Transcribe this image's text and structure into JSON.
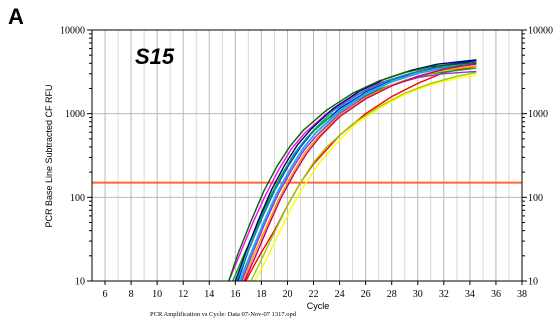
{
  "panel_label": "A",
  "chart_data": {
    "type": "line",
    "title": "S15",
    "xlabel": "Cycle",
    "ylabel": "PCR Base Line Subtracted CF RFU",
    "caption": "PCR Amplification vs Cycle: Data 07-Nov-07 1317.opd",
    "xlim": [
      5,
      38
    ],
    "ylim": [
      10,
      10000
    ],
    "y_scale": "log",
    "x_ticks": [
      6,
      8,
      10,
      12,
      14,
      16,
      18,
      20,
      22,
      24,
      26,
      28,
      30,
      32,
      34,
      36,
      38
    ],
    "y_ticks": [
      10,
      100,
      1000,
      10000
    ],
    "y_tick_labels": [
      "10",
      "100",
      "1000",
      "10000"
    ],
    "grid": true,
    "threshold": {
      "value": 150,
      "color": "#ff6633"
    },
    "series": [
      {
        "color": "#ff0000",
        "x": [
          16.8,
          17.5,
          18,
          19,
          20,
          21,
          22,
          24,
          26,
          28,
          30,
          32,
          34.5
        ],
        "y": [
          10,
          16,
          22,
          40,
          80,
          150,
          250,
          550,
          1000,
          1600,
          2300,
          3100,
          3700
        ]
      },
      {
        "color": "#0000ff",
        "x": [
          16.2,
          17,
          18,
          19,
          20,
          21,
          22,
          24,
          26,
          28,
          30,
          32,
          34.5
        ],
        "y": [
          10,
          23,
          55,
          120,
          230,
          400,
          620,
          1150,
          1800,
          2500,
          3200,
          3800,
          4300
        ]
      },
      {
        "color": "#00aa00",
        "x": [
          15.8,
          16.5,
          17.5,
          18.5,
          19.5,
          20.5,
          21.5,
          23,
          25,
          27,
          29,
          31,
          34.5
        ],
        "y": [
          10,
          18,
          40,
          90,
          180,
          330,
          520,
          850,
          1350,
          1950,
          2500,
          3000,
          3500
        ]
      },
      {
        "color": "#ff00ff",
        "x": [
          15.5,
          16.3,
          17.3,
          18.3,
          19.3,
          20.3,
          21.3,
          23,
          25,
          27,
          29,
          31,
          34.5
        ],
        "y": [
          10,
          20,
          48,
          105,
          210,
          380,
          580,
          1000,
          1600,
          2300,
          2900,
          3400,
          3900
        ]
      },
      {
        "color": "#00cccc",
        "x": [
          16.3,
          17.2,
          18.2,
          19.2,
          20.2,
          21.2,
          22.2,
          24,
          26,
          28,
          30,
          32,
          34.5
        ],
        "y": [
          10,
          22,
          52,
          115,
          220,
          390,
          600,
          1100,
          1750,
          2450,
          3050,
          3550,
          4000
        ]
      },
      {
        "color": "#000066",
        "x": [
          16,
          16.8,
          17.8,
          18.8,
          19.8,
          20.8,
          21.8,
          23.5,
          25.5,
          27.5,
          29.5,
          31.5,
          34.5
        ],
        "y": [
          10,
          22,
          55,
          125,
          245,
          430,
          650,
          1150,
          1850,
          2600,
          3300,
          3900,
          4400
        ]
      },
      {
        "color": "#99cc00",
        "x": [
          17.2,
          18,
          19,
          20,
          21,
          22,
          23,
          25,
          27,
          29,
          31,
          33,
          34.5
        ],
        "y": [
          10,
          18,
          38,
          80,
          150,
          260,
          400,
          750,
          1200,
          1750,
          2300,
          2800,
          3100
        ]
      },
      {
        "color": "#9933cc",
        "x": [
          16.5,
          17.3,
          18.3,
          19.3,
          20.3,
          21.3,
          22.3,
          24,
          26,
          28,
          30,
          32,
          34.5
        ],
        "y": [
          10,
          21,
          50,
          110,
          210,
          370,
          560,
          1000,
          1600,
          2200,
          2700,
          3000,
          3200
        ]
      },
      {
        "color": "#ffff00",
        "x": [
          17.5,
          18.3,
          19.3,
          20.3,
          21.3,
          22.3,
          23.3,
          25,
          27,
          29,
          31,
          33,
          34.5
        ],
        "y": [
          10,
          17,
          36,
          75,
          140,
          240,
          370,
          700,
          1150,
          1700,
          2200,
          2650,
          2900
        ]
      },
      {
        "color": "#006600",
        "x": [
          15.5,
          16.2,
          17.2,
          18.2,
          19.2,
          20.2,
          21.2,
          23,
          25,
          27,
          29,
          31,
          34.5
        ],
        "y": [
          10,
          21,
          52,
          120,
          235,
          410,
          630,
          1100,
          1750,
          2450,
          3100,
          3650,
          4100
        ]
      },
      {
        "color": "#ff9900",
        "x": [
          16.6,
          17.4,
          18.4,
          19.4,
          20.4,
          21.4,
          22.4,
          24,
          26,
          28,
          30,
          32,
          34.5
        ],
        "y": [
          10,
          20,
          45,
          100,
          195,
          350,
          540,
          960,
          1550,
          2200,
          2800,
          3300,
          3700
        ]
      },
      {
        "color": "#3399ff",
        "x": [
          16.4,
          17.2,
          18.2,
          19.2,
          20.2,
          21.2,
          22.2,
          24,
          26,
          28,
          30,
          32,
          34.5
        ],
        "y": [
          10,
          21,
          50,
          110,
          215,
          380,
          590,
          1050,
          1700,
          2400,
          3000,
          3500,
          3900
        ]
      },
      {
        "color": "#009999",
        "x": [
          16.1,
          16.9,
          17.9,
          18.9,
          19.9,
          20.9,
          21.9,
          23.5,
          25.5,
          27.5,
          29.5,
          31.5,
          34.5
        ],
        "y": [
          10,
          21,
          52,
          115,
          225,
          395,
          610,
          1080,
          1720,
          2420,
          3050,
          3550,
          3950
        ]
      },
      {
        "color": "#cc0066",
        "x": [
          16.7,
          17.5,
          18.5,
          19.5,
          20.5,
          21.5,
          22.5,
          24,
          26,
          28,
          30,
          32,
          34.5
        ],
        "y": [
          10,
          19,
          44,
          98,
          190,
          340,
          530,
          920,
          1500,
          2150,
          2800,
          3400,
          3950
        ]
      }
    ]
  }
}
